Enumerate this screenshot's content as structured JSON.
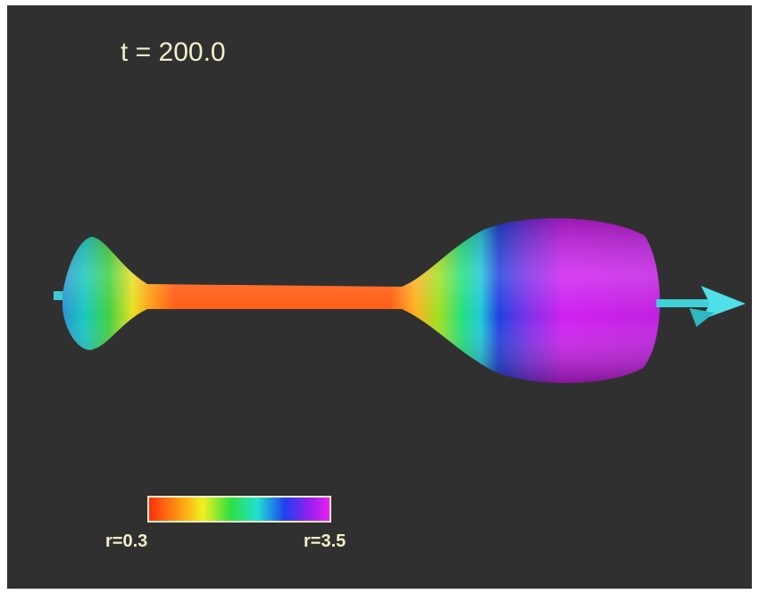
{
  "header": {
    "title": "t = 200.0"
  },
  "colorbar": {
    "min_label": "r=0.3",
    "max_label": "r=3.5"
  }
}
